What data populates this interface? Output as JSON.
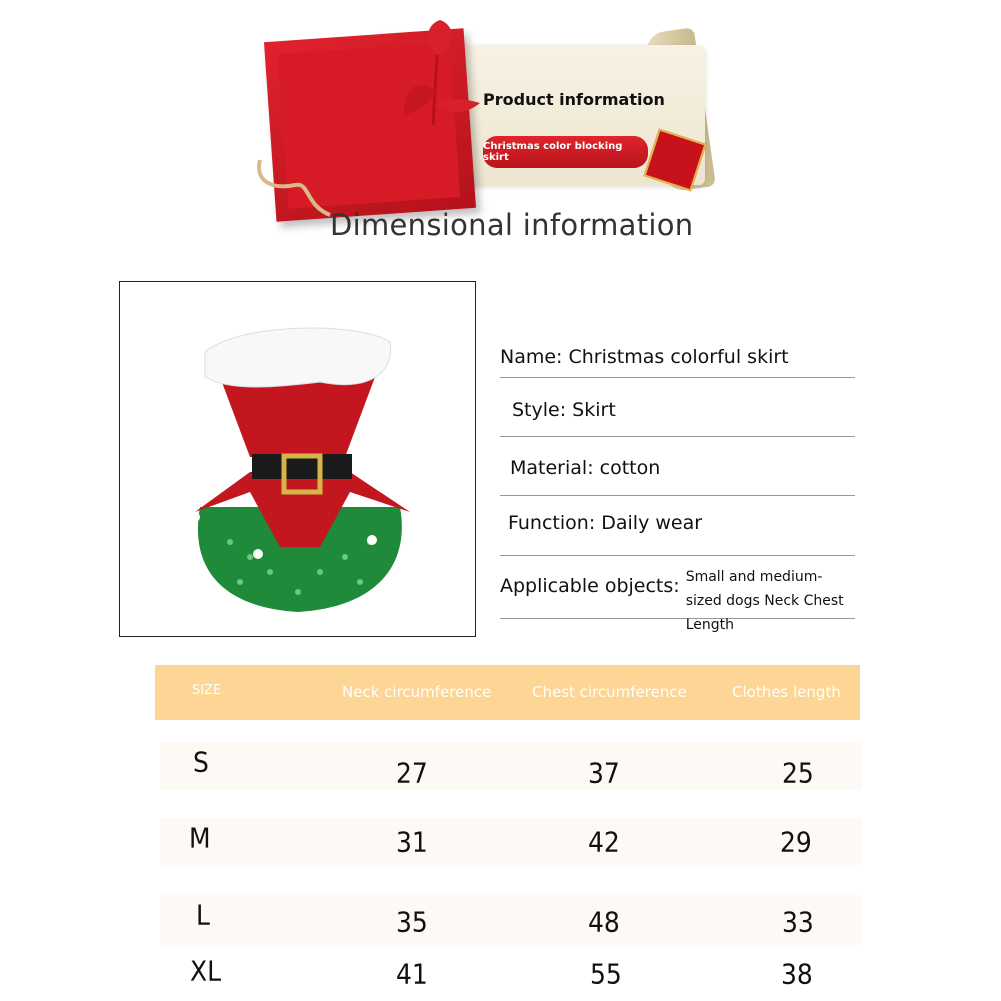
{
  "banner": {
    "title": "Product information",
    "subtitle": "Christmas color blocking skirt",
    "heading": "Dimensional information"
  },
  "info": [
    {
      "label": "Name: Christmas colorful skirt"
    },
    {
      "label": "Style: Skirt"
    },
    {
      "label": "Material: cotton"
    },
    {
      "label": "Function: Daily wear"
    },
    {
      "label": "Applicable objects:",
      "detail": "Small and medium-sized dogs Neck Chest Length"
    }
  ],
  "table": {
    "headers": [
      "SIZE",
      "Neck circumference",
      "Chest circumference",
      "Clothes length"
    ],
    "header_color": "#fdd594",
    "rows": [
      [
        "S",
        "27",
        "37",
        "25"
      ],
      [
        "M",
        "31",
        "42",
        "29"
      ],
      [
        "L",
        "35",
        "48",
        "33"
      ],
      [
        "XL",
        "41",
        "55",
        "38"
      ]
    ]
  }
}
